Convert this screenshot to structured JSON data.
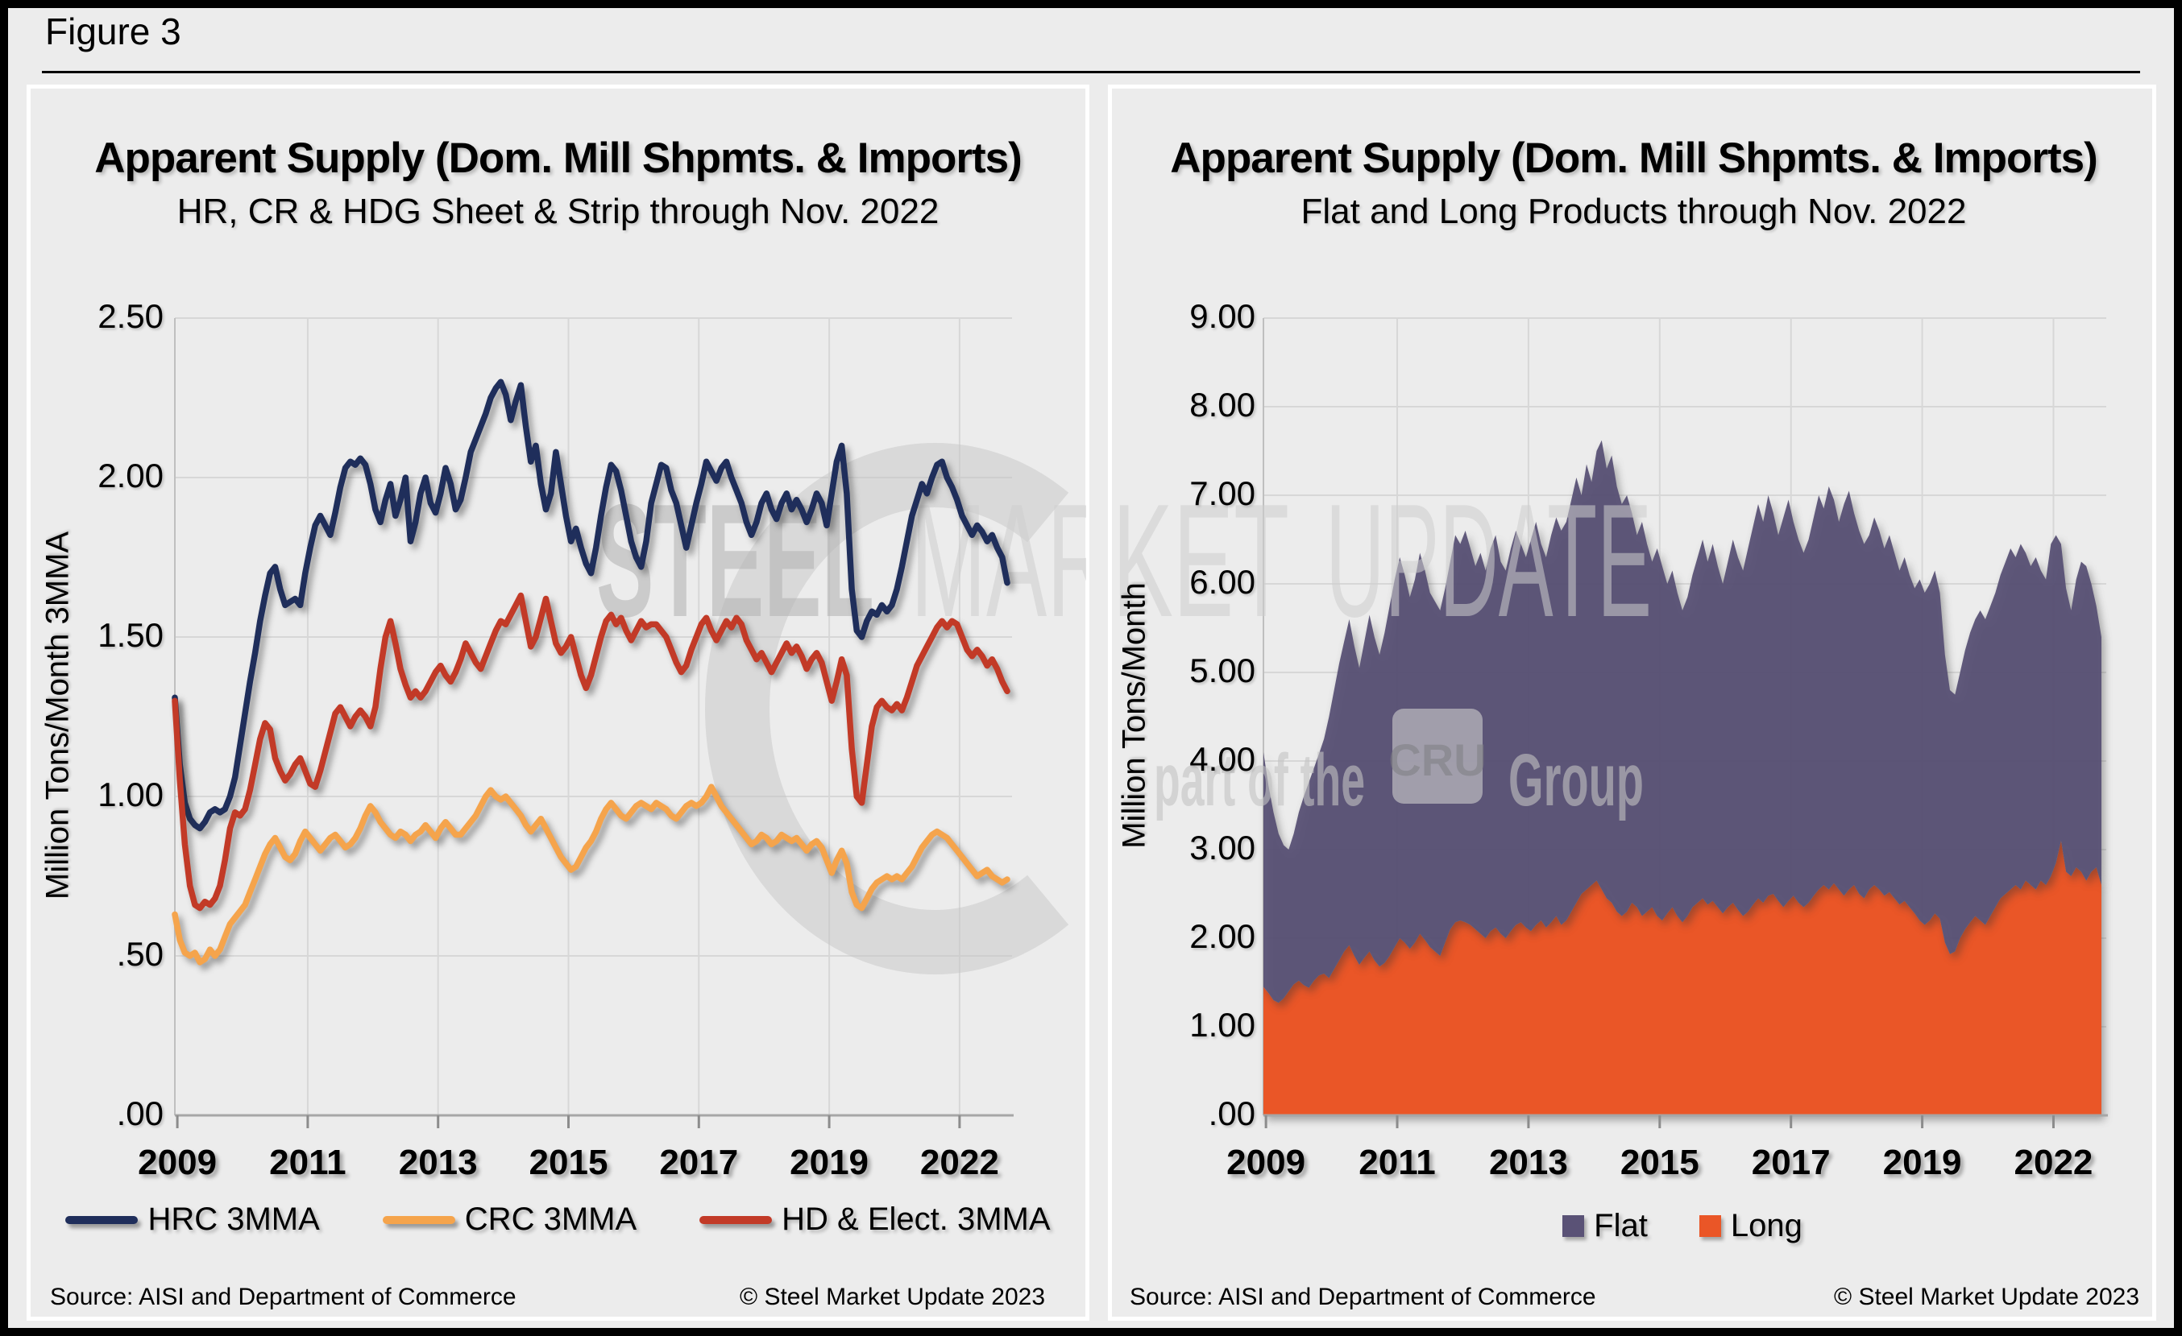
{
  "figure_label": "Figure 3",
  "footer": {
    "source": "Source: AISI and Department of Commerce",
    "copyright": "© Steel Market Update 2023"
  },
  "watermark": {
    "steel": "STEEL",
    "market": "MARKET",
    "update": "UPDATE",
    "part": "part of the",
    "cru": "CRU",
    "group": "Group"
  },
  "colors": {
    "background": "#ECECEC",
    "panel_border": "#FFFFFF",
    "frame": "#000000",
    "gridline": "#D7D7D7",
    "axis_line": "#A6A6A6",
    "tick": "#8C8C8C",
    "text": "#000000",
    "watermark_gray": "#C8C8C8"
  },
  "chart_data": [
    {
      "type": "line",
      "title": "Apparent Supply (Dom. Mill Shpmts. & Imports)",
      "subtitle": "HR, CR & HDG Sheet & Strip through Nov. 2022",
      "ylabel": "Million Tons/Month 3MMA",
      "ylim": [
        0,
        2.5
      ],
      "grid": true,
      "legend_position": "bottom",
      "x_period": "monthly, Jan 2009 through Nov 2022",
      "n_points": 167,
      "yticks": [
        {
          "label": "2.50",
          "value": 2.5
        },
        {
          "label": "2.00",
          "value": 2.0
        },
        {
          "label": "1.50",
          "value": 1.5
        },
        {
          "label": "1.00",
          "value": 1.0
        },
        {
          "label": ".50",
          "value": 0.5
        },
        {
          "label": ".00",
          "value": 0.0
        }
      ],
      "xtick_labels": [
        "2009",
        "2011",
        "2013",
        "2015",
        "2017",
        "2019",
        "2022"
      ],
      "draw_order": [
        0,
        2,
        1
      ],
      "series": [
        {
          "name": "HRC 3MMA",
          "color": "#1F2E5B",
          "values": [
            1.31,
            1.1,
            0.98,
            0.93,
            0.91,
            0.9,
            0.92,
            0.95,
            0.96,
            0.95,
            0.96,
            1.0,
            1.06,
            1.16,
            1.26,
            1.36,
            1.45,
            1.55,
            1.63,
            1.7,
            1.72,
            1.65,
            1.6,
            1.61,
            1.62,
            1.6,
            1.7,
            1.78,
            1.85,
            1.88,
            1.85,
            1.82,
            1.89,
            1.97,
            2.03,
            2.05,
            2.04,
            2.06,
            2.04,
            1.98,
            1.9,
            1.86,
            1.93,
            1.98,
            1.88,
            1.93,
            2.0,
            1.8,
            1.86,
            1.95,
            2.0,
            1.92,
            1.89,
            1.95,
            2.03,
            1.98,
            1.9,
            1.93,
            2.0,
            2.08,
            2.12,
            2.16,
            2.2,
            2.25,
            2.28,
            2.3,
            2.26,
            2.18,
            2.24,
            2.29,
            2.16,
            2.05,
            2.1,
            1.98,
            1.9,
            1.95,
            2.08,
            1.98,
            1.88,
            1.8,
            1.84,
            1.78,
            1.73,
            1.7,
            1.78,
            1.88,
            1.97,
            2.04,
            2.02,
            1.96,
            1.88,
            1.8,
            1.75,
            1.72,
            1.8,
            1.92,
            1.98,
            2.04,
            2.03,
            1.96,
            1.92,
            1.85,
            1.78,
            1.85,
            1.92,
            1.98,
            2.05,
            2.02,
            1.99,
            2.03,
            2.05,
            2.0,
            1.96,
            1.92,
            1.86,
            1.82,
            1.86,
            1.92,
            1.95,
            1.9,
            1.87,
            1.92,
            1.95,
            1.9,
            1.93,
            1.9,
            1.86,
            1.9,
            1.95,
            1.92,
            1.85,
            1.95,
            2.05,
            2.1,
            1.95,
            1.65,
            1.52,
            1.5,
            1.55,
            1.58,
            1.57,
            1.6,
            1.58,
            1.6,
            1.65,
            1.72,
            1.8,
            1.88,
            1.93,
            1.98,
            1.95,
            2.0,
            2.04,
            2.05,
            2.0,
            1.97,
            1.93,
            1.88,
            1.85,
            1.82,
            1.85,
            1.83,
            1.8,
            1.82,
            1.78,
            1.75,
            1.67
          ]
        },
        {
          "name": "CRC 3MMA",
          "color": "#F5A44C",
          "values": [
            0.63,
            0.55,
            0.51,
            0.5,
            0.51,
            0.48,
            0.49,
            0.52,
            0.5,
            0.52,
            0.56,
            0.6,
            0.62,
            0.64,
            0.66,
            0.7,
            0.74,
            0.78,
            0.82,
            0.85,
            0.87,
            0.84,
            0.81,
            0.8,
            0.82,
            0.86,
            0.89,
            0.87,
            0.85,
            0.83,
            0.85,
            0.87,
            0.88,
            0.86,
            0.84,
            0.85,
            0.87,
            0.9,
            0.94,
            0.97,
            0.95,
            0.92,
            0.9,
            0.88,
            0.87,
            0.89,
            0.88,
            0.86,
            0.88,
            0.89,
            0.91,
            0.89,
            0.87,
            0.9,
            0.92,
            0.9,
            0.88,
            0.88,
            0.9,
            0.92,
            0.94,
            0.97,
            1.0,
            1.02,
            1.0,
            0.99,
            1.0,
            0.98,
            0.96,
            0.94,
            0.91,
            0.89,
            0.91,
            0.93,
            0.9,
            0.87,
            0.84,
            0.81,
            0.79,
            0.77,
            0.78,
            0.81,
            0.84,
            0.86,
            0.89,
            0.93,
            0.96,
            0.98,
            0.96,
            0.94,
            0.93,
            0.95,
            0.97,
            0.98,
            0.97,
            0.96,
            0.98,
            0.97,
            0.96,
            0.94,
            0.93,
            0.95,
            0.97,
            0.98,
            0.97,
            0.98,
            1.0,
            1.03,
            1.0,
            0.97,
            0.95,
            0.93,
            0.91,
            0.89,
            0.87,
            0.85,
            0.86,
            0.88,
            0.87,
            0.85,
            0.86,
            0.88,
            0.87,
            0.86,
            0.87,
            0.85,
            0.83,
            0.85,
            0.86,
            0.84,
            0.8,
            0.76,
            0.8,
            0.83,
            0.79,
            0.7,
            0.66,
            0.65,
            0.68,
            0.71,
            0.73,
            0.74,
            0.75,
            0.74,
            0.75,
            0.74,
            0.76,
            0.78,
            0.81,
            0.84,
            0.86,
            0.88,
            0.89,
            0.88,
            0.87,
            0.85,
            0.83,
            0.81,
            0.79,
            0.77,
            0.75,
            0.76,
            0.77,
            0.75,
            0.74,
            0.73,
            0.74
          ]
        },
        {
          "name": "HD & Elect. 3MMA",
          "color": "#C23A27",
          "values": [
            1.3,
            1.05,
            0.85,
            0.72,
            0.66,
            0.65,
            0.67,
            0.66,
            0.68,
            0.72,
            0.8,
            0.9,
            0.95,
            0.94,
            0.96,
            1.02,
            1.1,
            1.18,
            1.23,
            1.21,
            1.12,
            1.08,
            1.05,
            1.07,
            1.1,
            1.12,
            1.08,
            1.04,
            1.03,
            1.08,
            1.14,
            1.2,
            1.26,
            1.28,
            1.25,
            1.22,
            1.25,
            1.27,
            1.25,
            1.22,
            1.28,
            1.4,
            1.5,
            1.55,
            1.48,
            1.4,
            1.35,
            1.31,
            1.33,
            1.31,
            1.33,
            1.36,
            1.39,
            1.41,
            1.38,
            1.36,
            1.39,
            1.43,
            1.48,
            1.45,
            1.42,
            1.4,
            1.44,
            1.48,
            1.52,
            1.55,
            1.54,
            1.57,
            1.6,
            1.63,
            1.55,
            1.47,
            1.5,
            1.56,
            1.62,
            1.55,
            1.48,
            1.45,
            1.47,
            1.5,
            1.44,
            1.38,
            1.34,
            1.38,
            1.44,
            1.5,
            1.55,
            1.57,
            1.54,
            1.56,
            1.52,
            1.49,
            1.52,
            1.55,
            1.53,
            1.54,
            1.54,
            1.52,
            1.5,
            1.46,
            1.42,
            1.39,
            1.41,
            1.46,
            1.5,
            1.54,
            1.56,
            1.52,
            1.49,
            1.52,
            1.55,
            1.53,
            1.56,
            1.54,
            1.49,
            1.46,
            1.43,
            1.45,
            1.42,
            1.39,
            1.42,
            1.45,
            1.48,
            1.45,
            1.47,
            1.44,
            1.4,
            1.43,
            1.45,
            1.42,
            1.36,
            1.3,
            1.36,
            1.43,
            1.38,
            1.15,
            1.0,
            0.98,
            1.1,
            1.22,
            1.28,
            1.3,
            1.28,
            1.27,
            1.29,
            1.27,
            1.31,
            1.36,
            1.41,
            1.44,
            1.47,
            1.5,
            1.53,
            1.55,
            1.53,
            1.55,
            1.54,
            1.5,
            1.46,
            1.44,
            1.46,
            1.44,
            1.41,
            1.43,
            1.4,
            1.36,
            1.33
          ]
        }
      ]
    },
    {
      "type": "area",
      "title": "Apparent Supply (Dom. Mill Shpmts. & Imports)",
      "subtitle": "Flat and Long Products through Nov. 2022",
      "ylabel": "Million Tons/Month",
      "ylim": [
        0,
        9
      ],
      "grid": true,
      "legend_position": "bottom",
      "x_period": "monthly, Jan 2009 through Nov 2022",
      "n_points": 167,
      "yticks": [
        {
          "label": "9.00",
          "value": 9
        },
        {
          "label": "8.00",
          "value": 8
        },
        {
          "label": "7.00",
          "value": 7
        },
        {
          "label": "6.00",
          "value": 6
        },
        {
          "label": "5.00",
          "value": 5
        },
        {
          "label": "4.00",
          "value": 4
        },
        {
          "label": "3.00",
          "value": 3
        },
        {
          "label": "2.00",
          "value": 2
        },
        {
          "label": "1.00",
          "value": 1
        },
        {
          "label": ".00",
          "value": 0
        }
      ],
      "xtick_labels": [
        "2009",
        "2011",
        "2013",
        "2015",
        "2017",
        "2019",
        "2022"
      ],
      "stack_order": [
        1,
        0
      ],
      "series": [
        {
          "name": "Flat",
          "color": "#5A5276",
          "values": [
            2.65,
            2.34,
            2.12,
            1.91,
            1.73,
            1.6,
            1.7,
            1.9,
            2.13,
            2.32,
            2.4,
            2.5,
            2.65,
            2.95,
            3.15,
            3.35,
            3.5,
            3.68,
            3.5,
            3.35,
            3.57,
            3.8,
            3.65,
            3.52,
            3.73,
            3.95,
            4.15,
            4.3,
            4.15,
            3.97,
            4.1,
            4.3,
            4.17,
            4.0,
            3.95,
            3.9,
            4.0,
            4.15,
            4.37,
            4.25,
            4.42,
            4.25,
            4.1,
            4.3,
            4.15,
            4.32,
            4.43,
            4.2,
            4.15,
            4.32,
            4.45,
            4.27,
            4.18,
            4.42,
            4.55,
            4.25,
            4.18,
            4.37,
            4.5,
            4.45,
            4.5,
            4.65,
            4.8,
            4.5,
            4.8,
            4.55,
            4.85,
            5.07,
            4.85,
            5.05,
            4.8,
            4.65,
            4.7,
            4.4,
            4.2,
            4.45,
            4.15,
            3.9,
            4.15,
            4.0,
            3.72,
            3.8,
            3.65,
            3.52,
            3.6,
            3.75,
            3.9,
            4.05,
            3.87,
            4.03,
            3.85,
            3.72,
            3.9,
            4.1,
            3.98,
            3.9,
            4.1,
            4.27,
            4.45,
            4.3,
            4.52,
            4.3,
            4.13,
            4.4,
            4.53,
            4.22,
            4.1,
            4.0,
            4.1,
            4.27,
            4.45,
            4.25,
            4.55,
            4.33,
            4.15,
            4.42,
            4.5,
            4.2,
            4.1,
            4.0,
            4.0,
            4.15,
            4.05,
            3.92,
            4.03,
            3.9,
            3.77,
            3.88,
            3.75,
            3.67,
            3.85,
            3.75,
            3.8,
            3.87,
            3.68,
            3.25,
            2.98,
            2.9,
            3.0,
            3.15,
            3.27,
            3.35,
            3.5,
            3.45,
            3.5,
            3.55,
            3.65,
            3.75,
            3.85,
            3.7,
            3.9,
            3.7,
            3.6,
            3.75,
            3.5,
            3.45,
            3.75,
            3.7,
            3.35,
            3.2,
            3.0,
            3.25,
            3.5,
            3.55,
            3.25,
            2.95,
            2.8
          ]
        },
        {
          "name": "Long",
          "color": "#EA5627",
          "values": [
            1.45,
            1.38,
            1.3,
            1.27,
            1.32,
            1.4,
            1.48,
            1.52,
            1.47,
            1.44,
            1.52,
            1.58,
            1.6,
            1.55,
            1.65,
            1.75,
            1.85,
            1.92,
            1.8,
            1.7,
            1.78,
            1.85,
            1.75,
            1.68,
            1.72,
            1.8,
            1.9,
            2.0,
            1.95,
            1.88,
            1.95,
            2.05,
            1.98,
            1.9,
            1.85,
            1.8,
            1.95,
            2.1,
            2.18,
            2.2,
            2.18,
            2.15,
            2.1,
            2.05,
            2.0,
            2.08,
            2.12,
            2.05,
            2.0,
            2.08,
            2.15,
            2.18,
            2.12,
            2.08,
            2.15,
            2.2,
            2.12,
            2.18,
            2.25,
            2.15,
            2.2,
            2.3,
            2.4,
            2.5,
            2.55,
            2.6,
            2.65,
            2.55,
            2.45,
            2.4,
            2.3,
            2.25,
            2.3,
            2.4,
            2.35,
            2.25,
            2.3,
            2.35,
            2.25,
            2.2,
            2.28,
            2.35,
            2.25,
            2.18,
            2.25,
            2.35,
            2.4,
            2.45,
            2.38,
            2.42,
            2.35,
            2.28,
            2.35,
            2.4,
            2.32,
            2.25,
            2.3,
            2.38,
            2.45,
            2.4,
            2.48,
            2.5,
            2.42,
            2.35,
            2.42,
            2.48,
            2.4,
            2.35,
            2.4,
            2.48,
            2.55,
            2.6,
            2.55,
            2.62,
            2.55,
            2.48,
            2.55,
            2.6,
            2.5,
            2.45,
            2.55,
            2.6,
            2.55,
            2.48,
            2.52,
            2.45,
            2.38,
            2.42,
            2.35,
            2.28,
            2.2,
            2.15,
            2.2,
            2.28,
            2.22,
            1.95,
            1.82,
            1.85,
            2.0,
            2.1,
            2.18,
            2.25,
            2.2,
            2.15,
            2.25,
            2.35,
            2.45,
            2.5,
            2.55,
            2.6,
            2.55,
            2.65,
            2.6,
            2.55,
            2.65,
            2.6,
            2.7,
            2.85,
            3.1,
            2.75,
            2.7,
            2.8,
            2.75,
            2.65,
            2.75,
            2.8,
            2.6
          ]
        }
      ]
    }
  ]
}
